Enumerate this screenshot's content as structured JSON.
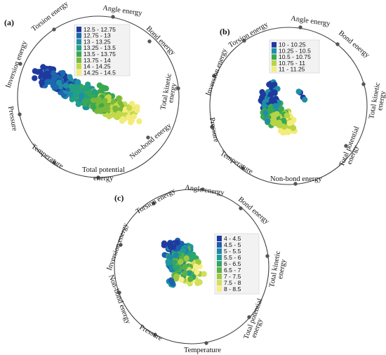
{
  "chart_data": [
    {
      "type": "radviz",
      "panel_label": "(a)",
      "anchors": [
        "Angle energy",
        "Bond energy",
        "Total kinetic energy",
        "Non-bond energy",
        "Total potential energy",
        "Temperature",
        "Pressure",
        "Inversion energy",
        "Torsion energy"
      ],
      "legend": {
        "placement": "inside-top",
        "entries": [
          {
            "label": "12.5 - 12.75",
            "color": "#1f3a9e"
          },
          {
            "label": "12.75 - 13",
            "color": "#1c68b0"
          },
          {
            "label": "13 - 13.25",
            "color": "#1e8ea8"
          },
          {
            "label": "13.25 - 13.5",
            "color": "#22a085"
          },
          {
            "label": "13.5 - 13.75",
            "color": "#3aa852"
          },
          {
            "label": "13.75 - 14",
            "color": "#78b93a"
          },
          {
            "label": "14 - 14.25",
            "color": "#c2d94a"
          },
          {
            "label": "14.25 - 14.5",
            "color": "#f3ec7a"
          }
        ]
      }
    },
    {
      "type": "radviz",
      "panel_label": "(b)",
      "anchors": [
        "Angle energy",
        "Bond energy",
        "Total kinetic energy",
        "Total potential energy",
        "Non-bond energy",
        "Temperature",
        "Pressure",
        "Inversion energy",
        "Torsion energy"
      ],
      "legend": {
        "placement": "inside-top",
        "entries": [
          {
            "label": "10 - 10.25",
            "color": "#1f3a9e"
          },
          {
            "label": "10.25 - 10.5",
            "color": "#1e8ea8"
          },
          {
            "label": "10.5 - 10.75",
            "color": "#3aa852"
          },
          {
            "label": "10.75 - 11",
            "color": "#b6d443"
          },
          {
            "label": "11 - 11.25",
            "color": "#f3ec7a"
          }
        ]
      }
    },
    {
      "type": "radviz",
      "panel_label": "(c)",
      "anchors": [
        "Angle energy",
        "Bond energy",
        "Total kinetic energy",
        "Total potential energy",
        "Temperature",
        "Pressure",
        "Non-bond energy",
        "Inversion energy",
        "Torsion energy"
      ],
      "legend": {
        "placement": "inside-right",
        "entries": [
          {
            "label": "4 - 4.5",
            "color": "#1f3a9e"
          },
          {
            "label": "4.5 - 5",
            "color": "#1c5fae"
          },
          {
            "label": "5 - 5.5",
            "color": "#1e86ab"
          },
          {
            "label": "5.5 - 6",
            "color": "#209c96"
          },
          {
            "label": "6 - 6.5",
            "color": "#2ea66a"
          },
          {
            "label": "6.5 - 7",
            "color": "#5bb142"
          },
          {
            "label": "7 - 7.5",
            "color": "#9dc93f"
          },
          {
            "label": "7.5 - 8",
            "color": "#d2df5a"
          },
          {
            "label": "8 - 8.5",
            "color": "#f6ee86"
          }
        ]
      }
    }
  ]
}
